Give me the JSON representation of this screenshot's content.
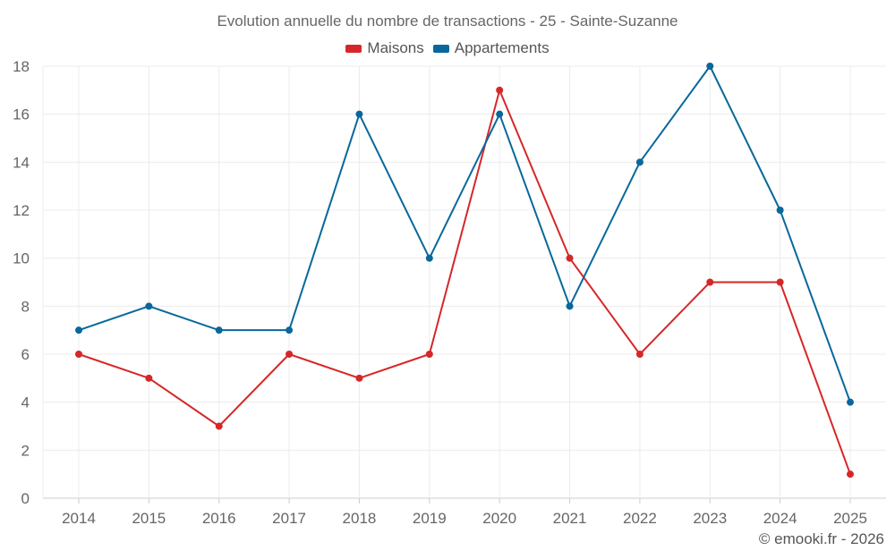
{
  "chart_data": {
    "type": "line",
    "title": "Evolution annuelle du nombre de transactions - 25 - Sainte-Suzanne",
    "categories": [
      "2014",
      "2015",
      "2016",
      "2017",
      "2018",
      "2019",
      "2020",
      "2021",
      "2022",
      "2023",
      "2024",
      "2025"
    ],
    "series": [
      {
        "name": "Maisons",
        "color": "#d62728",
        "values": [
          6,
          5,
          3,
          6,
          5,
          6,
          17,
          10,
          6,
          9,
          9,
          1
        ]
      },
      {
        "name": "Appartements",
        "color": "#08689c",
        "values": [
          7,
          8,
          7,
          7,
          16,
          10,
          16,
          8,
          14,
          18,
          12,
          4
        ]
      }
    ],
    "ylim": [
      0,
      18
    ],
    "yticks": [
      "0",
      "2",
      "4",
      "6",
      "8",
      "10",
      "12",
      "14",
      "16",
      "18"
    ],
    "xlabel": "",
    "ylabel": "",
    "grid": true,
    "legend_position": "top-center"
  },
  "footer": {
    "credit": "© emooki.fr - 2026"
  }
}
